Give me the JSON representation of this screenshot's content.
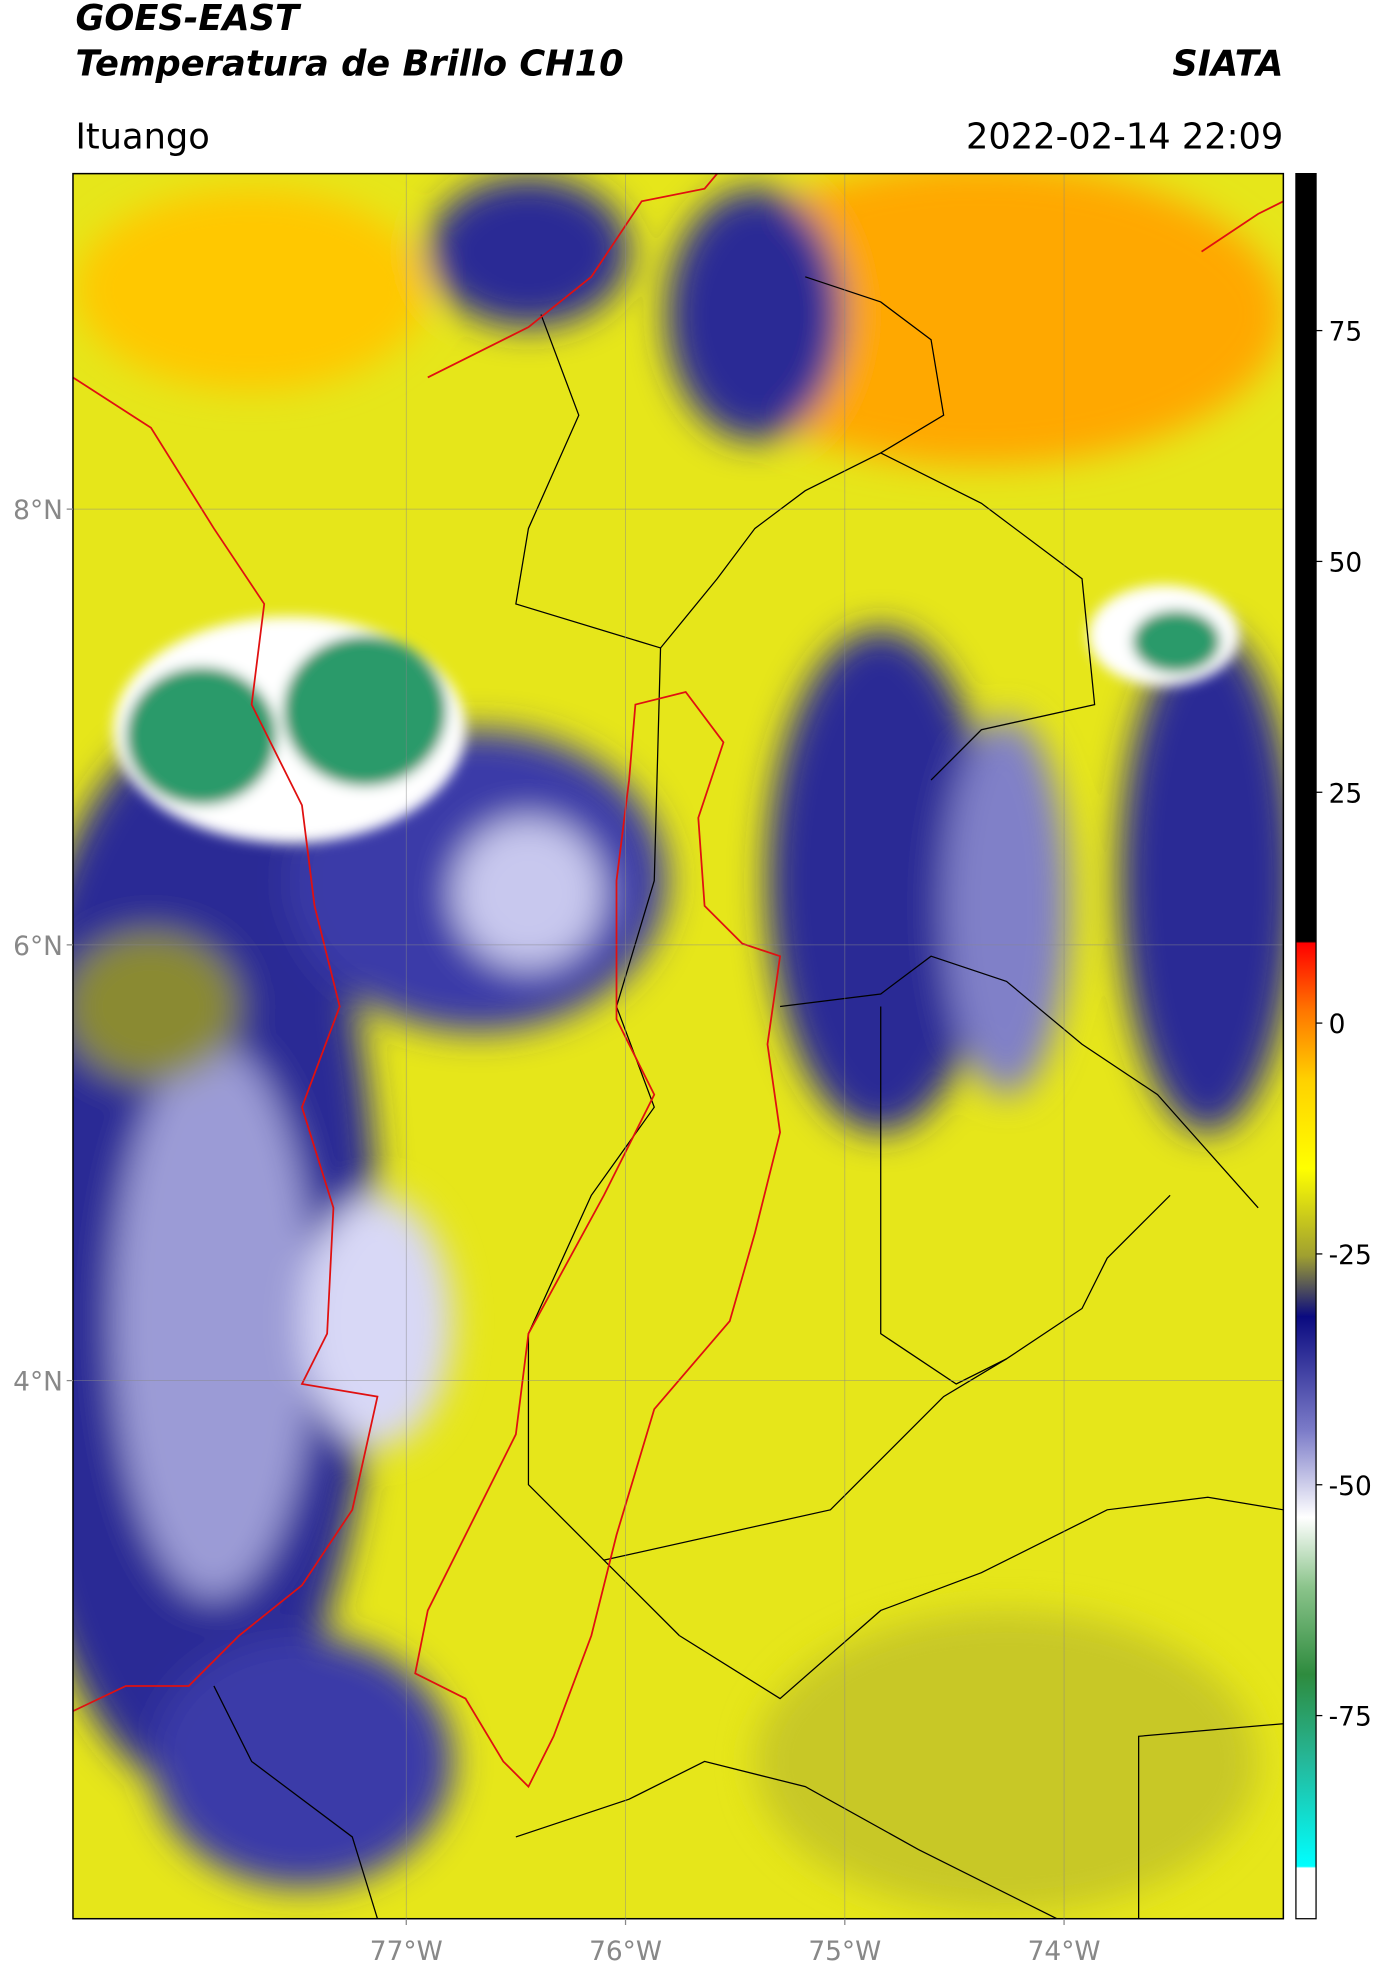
{
  "header": {
    "title": "GOES-EAST",
    "subtitle": "Temperatura de Brillo CH10",
    "source": "SIATA",
    "location": "Ituango",
    "datetime": "2022-02-14 22:09"
  },
  "map": {
    "xlim": [
      -78.52,
      -73.0
    ],
    "ylim": [
      1.53,
      9.54
    ],
    "grid": true,
    "xticks": [
      {
        "value": -77,
        "label": "77°W"
      },
      {
        "value": -76,
        "label": "76°W"
      },
      {
        "value": -75,
        "label": "75°W"
      },
      {
        "value": -74,
        "label": "74°W"
      }
    ],
    "yticks": [
      {
        "value": 4,
        "label": "4°N"
      },
      {
        "value": 6,
        "label": "6°N"
      },
      {
        "value": 8,
        "label": "8°N"
      }
    ]
  },
  "colorbar": {
    "lim": [
      -97,
      92
    ],
    "ticks": [
      -75,
      -50,
      -25,
      0,
      25,
      50,
      75
    ]
  }
}
